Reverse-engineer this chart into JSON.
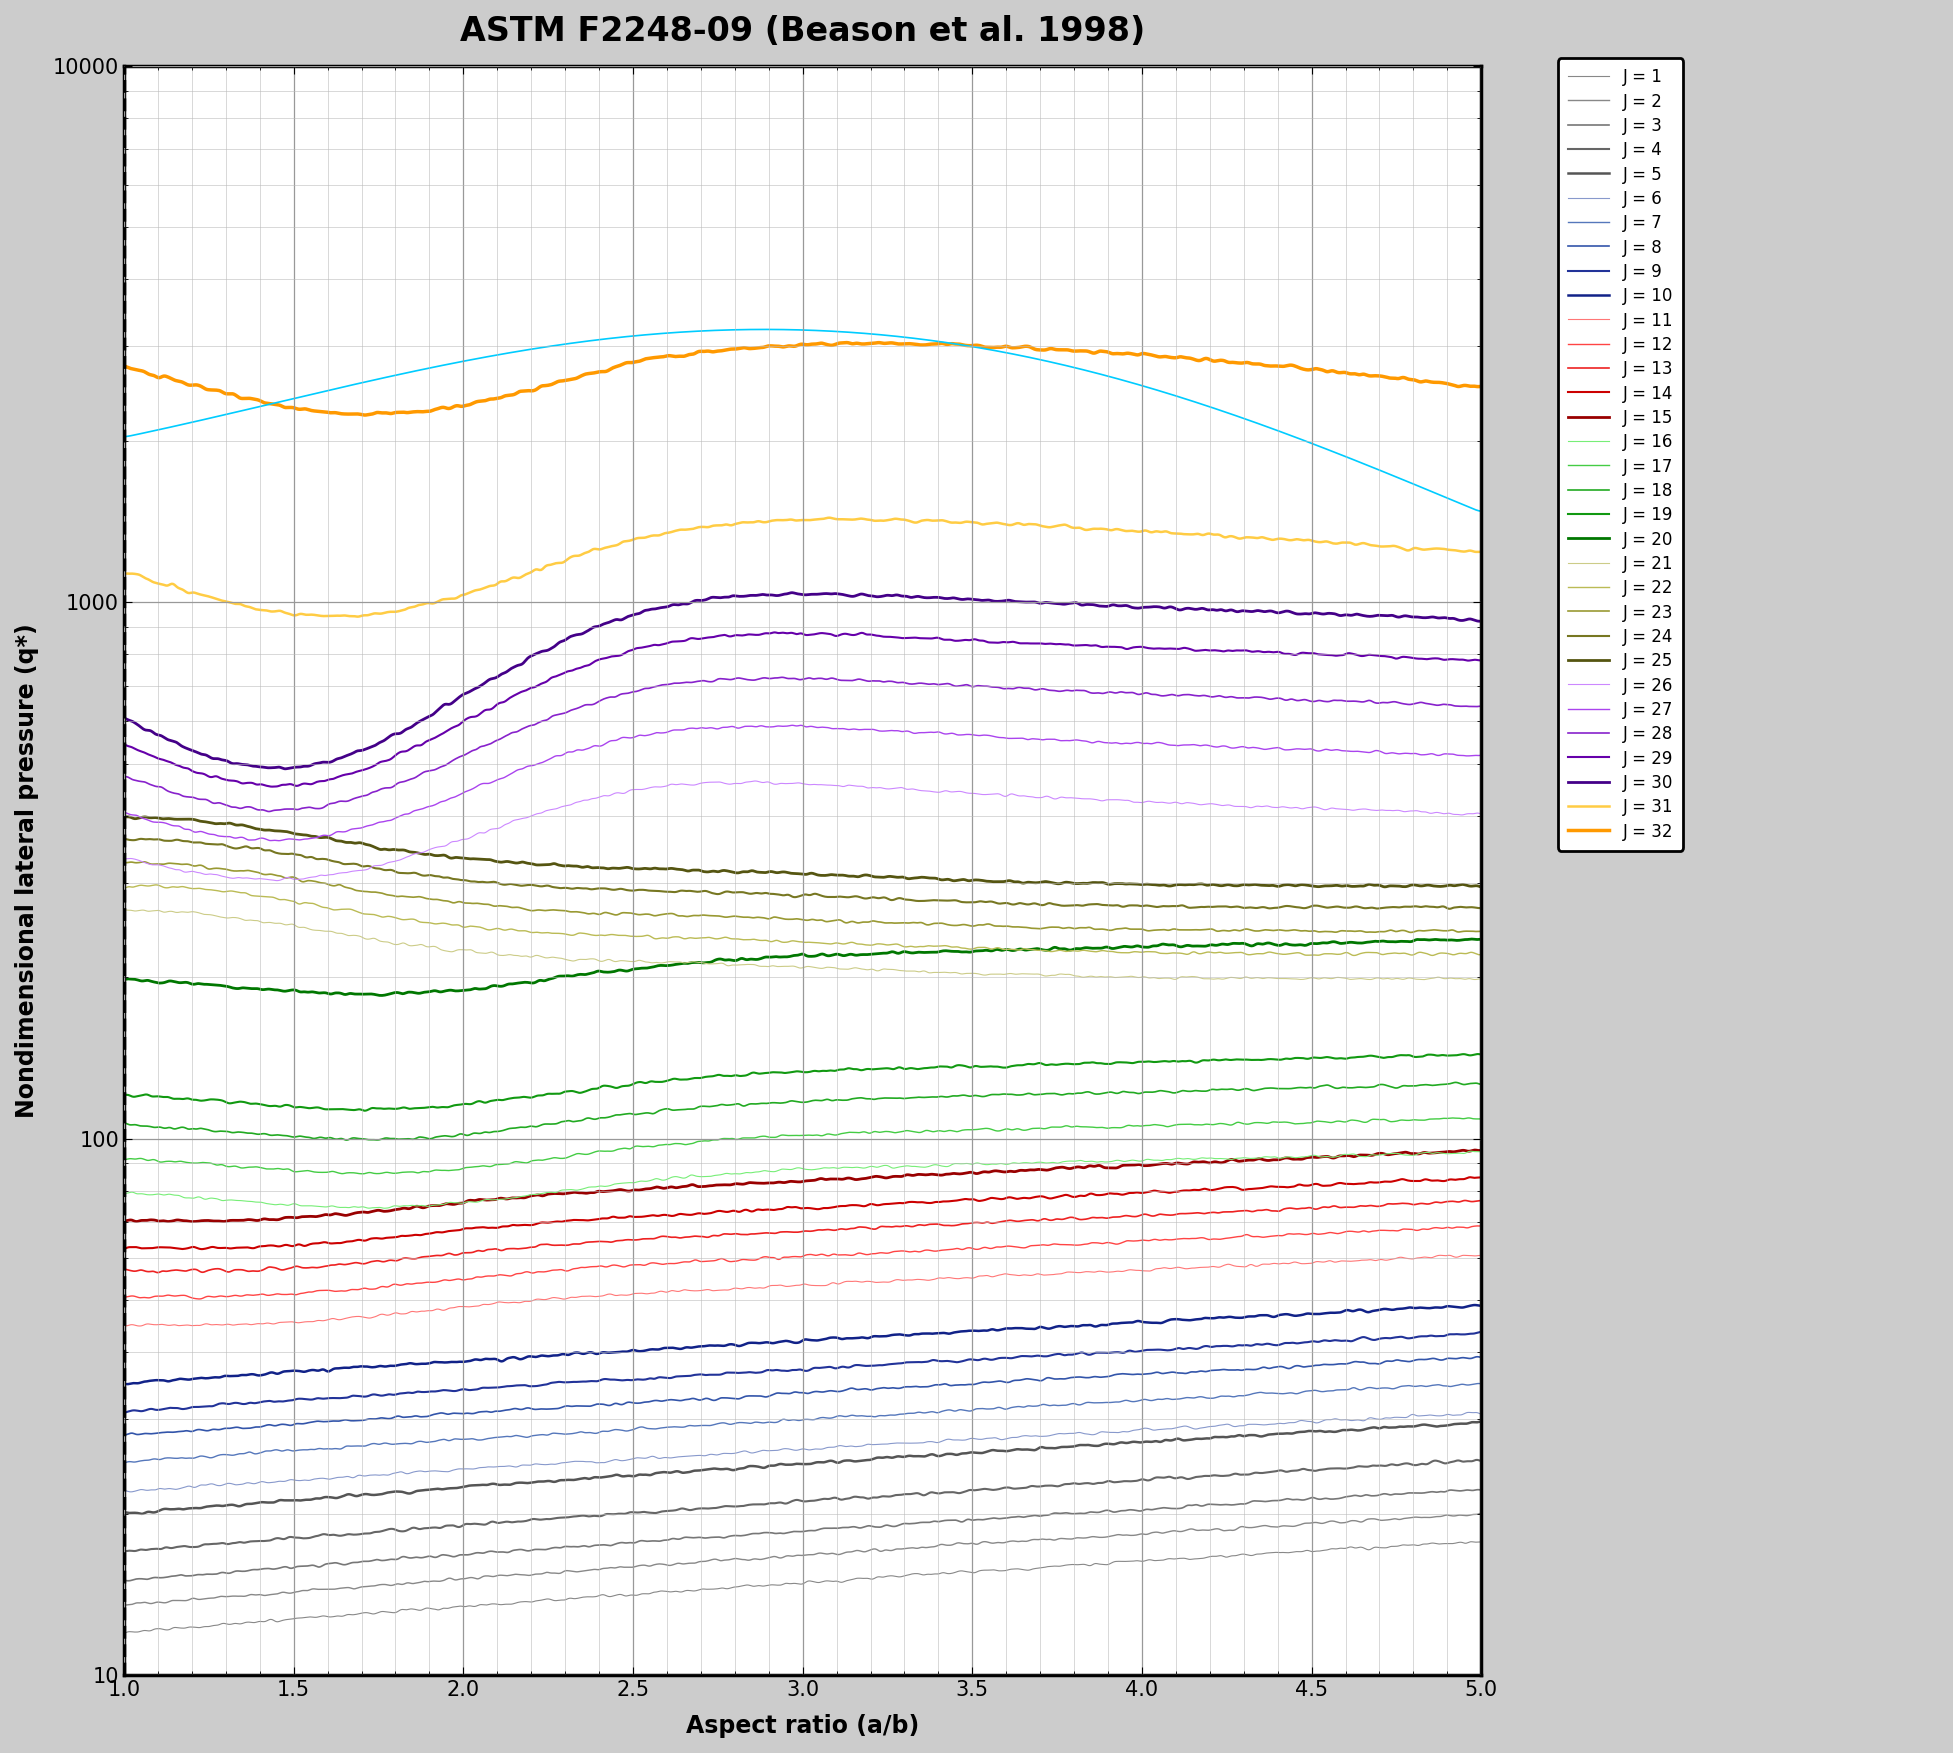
{
  "title": "ASTM F2248-09 (Beason et al. 1998)",
  "xlabel": "Aspect ratio (a/b)",
  "ylabel": "Nondimensional lateral pressure (q*)",
  "xlim": [
    1.0,
    5.0
  ],
  "ylim": [
    10,
    10000
  ],
  "background_color": "#ffffff",
  "fig_bg": "#cccccc",
  "title_fontsize": 24,
  "label_fontsize": 17,
  "tick_fontsize": 15,
  "legend_fontsize": 12,
  "colors": {
    "1": "#888888",
    "2": "#888888",
    "3": "#777777",
    "4": "#666666",
    "5": "#555555",
    "6": "#8899cc",
    "7": "#5577bb",
    "8": "#3355aa",
    "9": "#223399",
    "10": "#112288",
    "11": "#ff7777",
    "12": "#ff4444",
    "13": "#ee2222",
    "14": "#cc0000",
    "15": "#990000",
    "16": "#77ee77",
    "17": "#44cc44",
    "18": "#22aa22",
    "19": "#119911",
    "20": "#007700",
    "21": "#cccc88",
    "22": "#bbbb55",
    "23": "#999933",
    "24": "#777722",
    "25": "#555511",
    "26": "#cc88ff",
    "27": "#aa44ee",
    "28": "#8822cc",
    "29": "#6600aa",
    "30": "#440088",
    "31": "#ffcc44",
    "32": "#ff9900",
    "cyan": "#00ccff"
  },
  "linewidths": {
    "1": 0.8,
    "2": 1.0,
    "3": 1.2,
    "4": 1.5,
    "5": 1.8,
    "6": 0.8,
    "7": 1.0,
    "8": 1.2,
    "9": 1.5,
    "10": 1.8,
    "11": 0.8,
    "12": 1.0,
    "13": 1.2,
    "14": 1.5,
    "15": 2.0,
    "16": 0.8,
    "17": 1.0,
    "18": 1.2,
    "19": 1.5,
    "20": 2.0,
    "21": 0.8,
    "22": 1.0,
    "23": 1.2,
    "24": 1.5,
    "25": 2.0,
    "26": 0.8,
    "27": 1.0,
    "28": 1.2,
    "29": 1.5,
    "30": 2.0,
    "31": 1.8,
    "32": 2.5,
    "cyan": 1.2
  },
  "xticks": [
    1.0,
    1.5,
    2.0,
    2.5,
    3.0,
    3.5,
    4.0,
    4.5,
    5.0
  ]
}
